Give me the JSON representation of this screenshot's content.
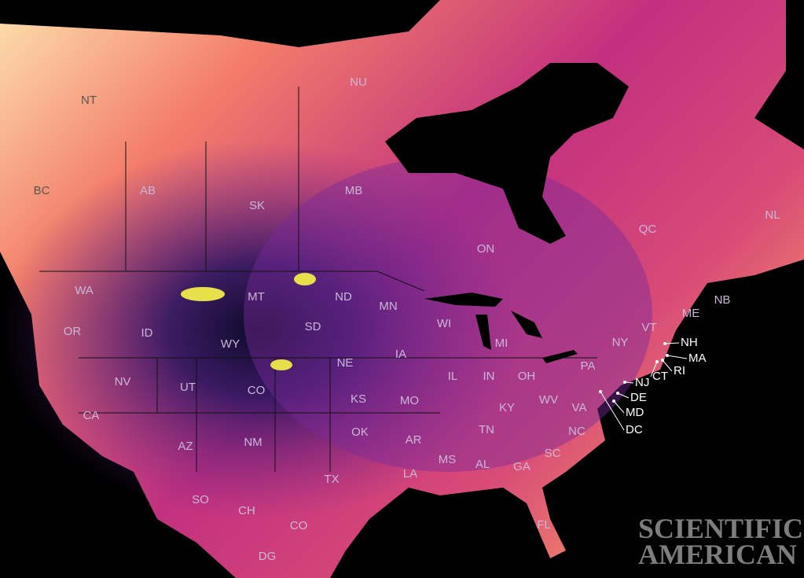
{
  "regions": [
    "NT",
    "NU",
    "BC",
    "AB",
    "SK",
    "MB",
    "ON",
    "QC",
    "NL",
    "NB",
    "WA",
    "MT",
    "ND",
    "MN",
    "OR",
    "ID",
    "SD",
    "WI",
    "MI",
    "WY",
    "IA",
    "NE",
    "NV",
    "UT",
    "CO",
    "KS",
    "IL",
    "IN",
    "OH",
    "PA",
    "NY",
    "VT",
    "ME",
    "CA",
    "AZ",
    "NM",
    "OK",
    "MO",
    "KY",
    "WV",
    "VA",
    "TN",
    "NC",
    "AR",
    "MS",
    "AL",
    "GA",
    "SC",
    "TX",
    "LA",
    "FL",
    "SO",
    "CH",
    "CO",
    "DG"
  ],
  "callouts": [
    "NH",
    "MA",
    "RI",
    "CT",
    "NJ",
    "DE",
    "MD",
    "DC"
  ],
  "logo": {
    "line1": "SCIENTIFIC",
    "line2": "AMERICAN"
  }
}
